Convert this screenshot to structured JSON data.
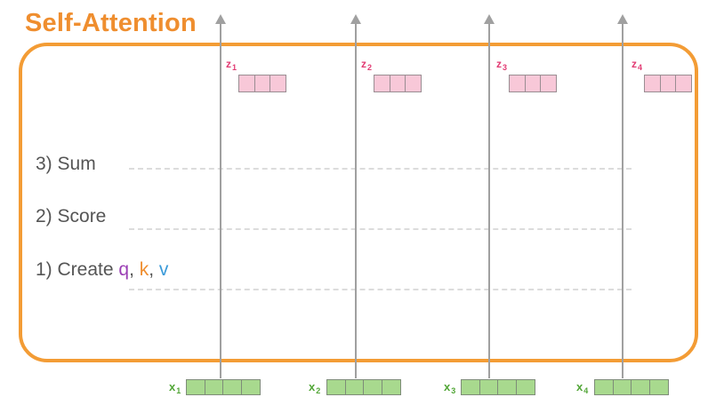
{
  "title": "Self-Attention",
  "steps": {
    "sum": "3) Sum",
    "score": "2) Score",
    "create_prefix": "1) Create ",
    "q": "q",
    "sep1": ", ",
    "k": "k",
    "sep2": ", ",
    "v": "v"
  },
  "outputs": [
    {
      "symbol": "z",
      "sub": "1"
    },
    {
      "symbol": "z",
      "sub": "2"
    },
    {
      "symbol": "z",
      "sub": "3"
    },
    {
      "symbol": "z",
      "sub": "4"
    }
  ],
  "inputs": [
    {
      "symbol": "x",
      "sub": "1"
    },
    {
      "symbol": "x",
      "sub": "2"
    },
    {
      "symbol": "x",
      "sub": "3"
    },
    {
      "symbol": "x",
      "sub": "4"
    }
  ],
  "colors": {
    "title": "#ef8e2f",
    "frame": "#f39c35",
    "q": "#9b3fb5",
    "k": "#ef8e2f",
    "v": "#3a9ad9",
    "output_vector": "#f8c8d8",
    "input_vector": "#a8d98e",
    "arrow": "#a0a0a0"
  }
}
